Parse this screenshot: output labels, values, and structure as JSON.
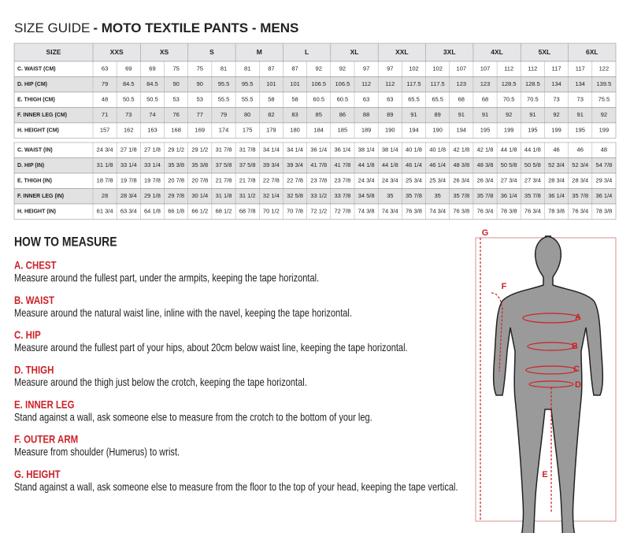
{
  "header": {
    "title": "SIZE GUIDE",
    "subtitle": "- MOTO TEXTILE PANTS - MENS"
  },
  "table": {
    "header": [
      "SIZE",
      "XXS",
      "XS",
      "S",
      "M",
      "L",
      "XL",
      "XXL",
      "3XL",
      "4XL",
      "5XL",
      "6XL"
    ],
    "cm_rows": [
      {
        "label": "C. WAIST (CM)",
        "values": [
          "63",
          "69",
          "69",
          "75",
          "75",
          "81",
          "81",
          "87",
          "87",
          "92",
          "92",
          "97",
          "97",
          "102",
          "102",
          "107",
          "107",
          "112",
          "112",
          "117",
          "117",
          "122"
        ]
      },
      {
        "label": "D. HIP (CM)",
        "values": [
          "79",
          "84.5",
          "84.5",
          "90",
          "90",
          "95.5",
          "95.5",
          "101",
          "101",
          "106.5",
          "106.5",
          "112",
          "112",
          "117.5",
          "117.5",
          "123",
          "123",
          "128.5",
          "128.5",
          "134",
          "134",
          "139.5"
        ]
      },
      {
        "label": "E. THIGH (CM)",
        "values": [
          "48",
          "50.5",
          "50.5",
          "53",
          "53",
          "55.5",
          "55.5",
          "58",
          "58",
          "60.5",
          "60.5",
          "63",
          "63",
          "65.5",
          "65.5",
          "68",
          "68",
          "70.5",
          "70.5",
          "73",
          "73",
          "75.5"
        ]
      },
      {
        "label": "F. INNER LEG (CM)",
        "values": [
          "71",
          "73",
          "74",
          "76",
          "77",
          "79",
          "80",
          "82",
          "83",
          "85",
          "86",
          "88",
          "89",
          "91",
          "89",
          "91",
          "91",
          "92",
          "91",
          "92",
          "91",
          "92"
        ]
      },
      {
        "label": "H. HEIGHT (CM)",
        "values": [
          "157",
          "162",
          "163",
          "168",
          "169",
          "174",
          "175",
          "179",
          "180",
          "184",
          "185",
          "189",
          "190",
          "194",
          "190",
          "194",
          "195",
          "199",
          "195",
          "199",
          "195",
          "199"
        ]
      }
    ],
    "in_rows": [
      {
        "label": "C. WAIST (IN)",
        "values": [
          "24 3/4",
          "27 1/8",
          "27 1/8",
          "29 1/2",
          "29 1/2",
          "31 7/8",
          "31 7/8",
          "34 1/4",
          "34 1/4",
          "36 1/4",
          "36 1/4",
          "38 1/4",
          "38 1/4",
          "40 1/8",
          "40 1/8",
          "42 1/8",
          "42 1/8",
          "44 1/8",
          "44 1/8",
          "46",
          "46",
          "48"
        ]
      },
      {
        "label": "D. HIP (IN)",
        "values": [
          "31 1/8",
          "33 1/4",
          "33 1/4",
          "35 3/8",
          "35 3/8",
          "37 5/8",
          "37 5/8",
          "39 3/4",
          "39 3/4",
          "41 7/8",
          "41 7/8",
          "44 1/8",
          "44 1/8",
          "46 1/4",
          "46 1/4",
          "48 3/8",
          "48 3/8",
          "50 5/8",
          "50 5/8",
          "52 3/4",
          "52 3/4",
          "54 7/8"
        ]
      },
      {
        "label": "E. THIGH (IN)",
        "values": [
          "18 7/8",
          "19 7/8",
          "19 7/8",
          "20 7/8",
          "20 7/8",
          "21 7/8",
          "21 7/8",
          "22 7/8",
          "22 7/8",
          "23 7/8",
          "23 7/8",
          "24 3/4",
          "24 3/4",
          "25 3/4",
          "25 3/4",
          "26 3/4",
          "26 3/4",
          "27 3/4",
          "27 3/4",
          "28 3/4",
          "28 3/4",
          "29 3/4"
        ]
      },
      {
        "label": "F. INNER LEG (IN)",
        "values": [
          "28",
          "28 3/4",
          "29 1/8",
          "29 7/8",
          "30 1/4",
          "31 1/8",
          "31 1/2",
          "32 1/4",
          "32 5/8",
          "33 1/2",
          "33 7/8",
          "34 5/8",
          "35",
          "35 7/8",
          "35",
          "35 7/8",
          "35 7/8",
          "36 1/4",
          "35 7/8",
          "36 1/4",
          "35 7/8",
          "36 1/4"
        ]
      },
      {
        "label": "H. HEIGHT (IN)",
        "values": [
          "61 3/4",
          "63 3/4",
          "64 1/8",
          "66 1/8",
          "66 1/2",
          "68 1/2",
          "68 7/8",
          "70 1/2",
          "70 7/8",
          "72 1/2",
          "72 7/8",
          "74 3/8",
          "74 3/4",
          "76 3/8",
          "74 3/4",
          "76 3/8",
          "76 3/4",
          "78 3/8",
          "76 3/4",
          "78 3/8",
          "76 3/4",
          "78 3/8"
        ]
      }
    ]
  },
  "how_to_measure": {
    "title": "HOW TO MEASURE",
    "items": [
      {
        "heading": "A. CHEST",
        "text": "Measure around the fullest part, under the armpits, keeping the tape horizontal."
      },
      {
        "heading": "B. WAIST",
        "text": "Measure around the natural waist line, inline with the navel, keeping the tape horizontal."
      },
      {
        "heading": "C. HIP",
        "text": "Measure around the fullest part of your hips, about 20cm below waist line, keeping the tape horizontal."
      },
      {
        "heading": "D. THIGH",
        "text": "Measure around the thigh just below the crotch, keeping the tape horizontal."
      },
      {
        "heading": "E. INNER LEG",
        "text": "Stand against a wall, ask someone else to measure from the crotch to the bottom of your leg."
      },
      {
        "heading": "F. OUTER ARM",
        "text": "Measure from shoulder (Humerus) to wrist."
      },
      {
        "heading": "G. HEIGHT",
        "text": "Stand against a wall, ask someone else to measure from the floor to the top of your head, keeping the tape vertical."
      }
    ]
  },
  "figure": {
    "labels": [
      "G",
      "F",
      "A",
      "B",
      "C",
      "D",
      "E"
    ]
  }
}
